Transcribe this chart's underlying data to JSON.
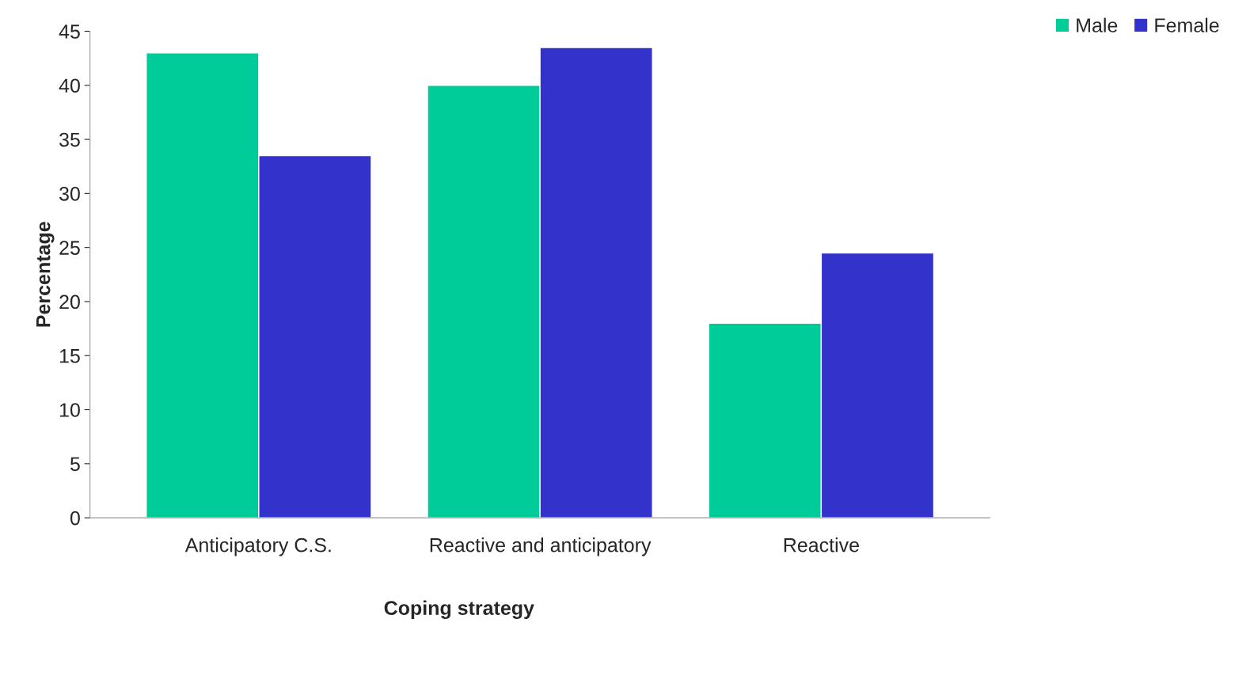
{
  "chart_data": {
    "type": "bar",
    "categories": [
      "Anticipatory C.S.",
      "Reactive and anticipatory",
      "Reactive"
    ],
    "series": [
      {
        "name": "Male",
        "color": "#00cc99",
        "values": [
          43,
          40,
          18
        ]
      },
      {
        "name": "Female",
        "color": "#3333cc",
        "values": [
          33.5,
          43.5,
          24.5
        ]
      }
    ],
    "xlabel": "Coping strategy",
    "ylabel": "Percentage",
    "ylim": [
      0,
      45
    ],
    "yticks": [
      0,
      5,
      10,
      15,
      20,
      25,
      30,
      35,
      40,
      45
    ],
    "grid": false,
    "legend": "top right"
  }
}
